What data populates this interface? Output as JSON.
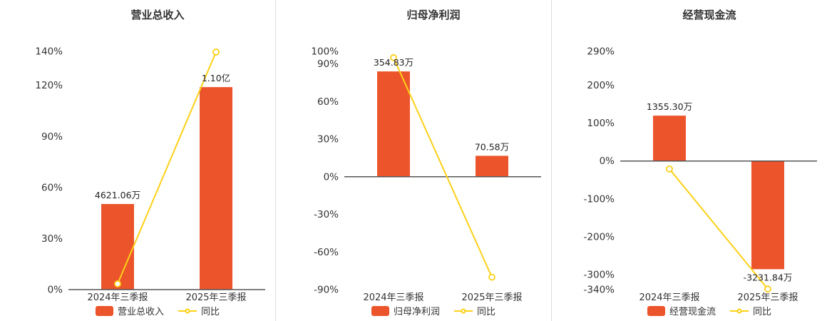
{
  "colors": {
    "bar": "#EC552B",
    "line": "#FDD017",
    "axis": "#555555",
    "text": "#333333"
  },
  "chart_data": [
    {
      "type": "bar",
      "title": "营业总收入",
      "categories": [
        "2024年三季报",
        "2025年三季报"
      ],
      "bar_series": {
        "name": "营业总收入",
        "labels": [
          "4621.06万",
          "1.10亿"
        ],
        "heights_pct": [
          50.3,
          119.0
        ]
      },
      "line_series": {
        "name": "同比",
        "values_pct": [
          3.4,
          139.6
        ]
      },
      "y_axis": {
        "min": 0,
        "max": 140,
        "unit": "%",
        "ticks": [
          0,
          30,
          60,
          90,
          120,
          140
        ]
      },
      "grid": false,
      "legend_position": "bottom"
    },
    {
      "type": "bar",
      "title": "归母净利润",
      "categories": [
        "2024年三季报",
        "2025年三季报"
      ],
      "bar_series": {
        "name": "归母净利润",
        "labels": [
          "354.83万",
          "70.58万"
        ],
        "heights_pct": [
          84.0,
          16.7
        ]
      },
      "line_series": {
        "name": "同比",
        "values_pct": [
          95.0,
          -80.1
        ]
      },
      "y_axis": {
        "min": -90,
        "max": 100,
        "unit": "%",
        "ticks": [
          -90,
          -60,
          -30,
          0,
          30,
          60,
          90,
          100
        ]
      },
      "grid": false,
      "legend_position": "bottom"
    },
    {
      "type": "bar",
      "title": "经营现金流",
      "categories": [
        "2024年三季报",
        "2025年三季报"
      ],
      "bar_series": {
        "name": "经营现金流",
        "labels": [
          "1355.30万",
          "-3231.84万"
        ],
        "heights_pct": [
          120.0,
          -286.0
        ]
      },
      "line_series": {
        "name": "同比",
        "values_pct": [
          -21.0,
          -338.5
        ]
      },
      "y_axis": {
        "min": -340,
        "max": 290,
        "unit": "%",
        "ticks": [
          -340,
          -300,
          -200,
          -100,
          0,
          100,
          200,
          290
        ]
      },
      "grid": false,
      "legend_position": "bottom"
    }
  ]
}
